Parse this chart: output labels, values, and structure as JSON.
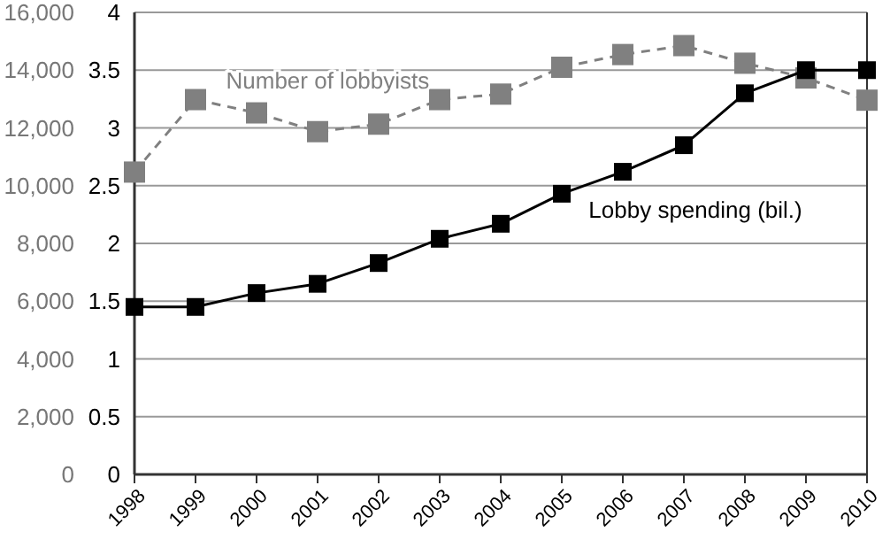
{
  "chart_data": {
    "type": "line",
    "categories": [
      "1998",
      "1999",
      "2000",
      "2001",
      "2002",
      "2003",
      "2004",
      "2005",
      "2006",
      "2007",
      "2008",
      "2009",
      "2010"
    ],
    "series": [
      {
        "name": "Number of lobbyists",
        "color": "#808080",
        "line_style": "dashed",
        "values": [
          10470,
          12980,
          12520,
          11870,
          12130,
          12980,
          13170,
          14100,
          14540,
          14850,
          14240,
          13730,
          12960
        ]
      },
      {
        "name": "Lobby spending (bil.)",
        "color": "#000000",
        "line_style": "solid",
        "axis": "y2",
        "values": [
          1.45,
          1.45,
          1.57,
          1.65,
          1.83,
          2.04,
          2.17,
          2.43,
          2.62,
          2.85,
          3.3,
          3.5,
          3.5
        ]
      }
    ],
    "ylim": [
      0,
      16000
    ],
    "yticks": [
      {
        "value": 0,
        "label": "0"
      },
      {
        "value": 2000,
        "label": "2,000"
      },
      {
        "value": 4000,
        "label": "4,000"
      },
      {
        "value": 6000,
        "label": "6,000"
      },
      {
        "value": 8000,
        "label": "8,000"
      },
      {
        "value": 10000,
        "label": "10,000"
      },
      {
        "value": 12000,
        "label": "12,000"
      },
      {
        "value": 14000,
        "label": "14,000"
      },
      {
        "value": 16000,
        "label": "16,000"
      }
    ],
    "y2lim": [
      0,
      4
    ],
    "y2ticks": [
      0,
      0.5,
      1,
      1.5,
      2,
      2.5,
      3,
      3.5,
      4
    ],
    "grid": "y",
    "marker": "square"
  }
}
